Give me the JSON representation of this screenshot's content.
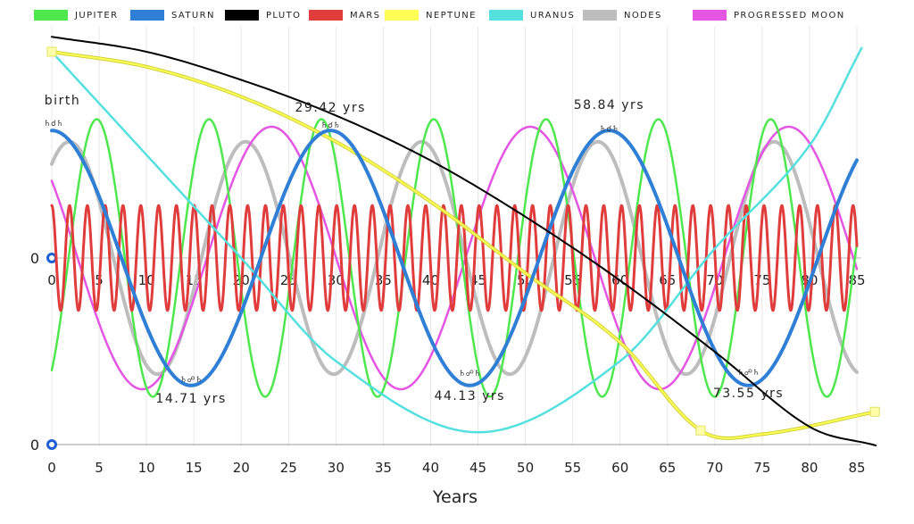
{
  "legend": {
    "items": [
      {
        "label": "JUPITER",
        "color": "#4ee84e"
      },
      {
        "label": "SATURN",
        "color": "#2f7fd6"
      },
      {
        "label": "PLUTO",
        "color": "#000000"
      },
      {
        "label": "MARS",
        "color": "#e03c3c"
      },
      {
        "label": "NEPTUNE",
        "color": "#ffff55"
      },
      {
        "label": "URANUS",
        "color": "#55e0e0"
      },
      {
        "label": "NODES",
        "color": "#bdbdbd"
      },
      {
        "label": "PROGRESSED MOON",
        "color": "#e455e4"
      }
    ]
  },
  "chart_data": {
    "type": "line",
    "xlabel": "Years",
    "ylabel": "",
    "xlim": [
      0,
      85
    ],
    "x_ticks": [
      "0",
      "5",
      "10",
      "15",
      "20",
      "25",
      "30",
      "35",
      "40",
      "45",
      "50",
      "55",
      "60",
      "65",
      "70",
      "75",
      "80",
      "85"
    ],
    "y_ticks": [
      "0",
      "0"
    ],
    "grid": true,
    "legend_position": "top",
    "annotations": [
      {
        "text": "birth",
        "x": 0
      },
      {
        "text": "14.71 yrs",
        "x": 14.71
      },
      {
        "text": "29.42 yrs",
        "x": 29.42
      },
      {
        "text": "44.13 yrs",
        "x": 44.13
      },
      {
        "text": "58.84 yrs",
        "x": 58.84
      },
      {
        "text": "73.55 yrs",
        "x": 73.55
      }
    ],
    "aspect_glyphs": [
      "♄☌♄",
      "♄☍♄",
      "♄☌♄",
      "♄☍♄",
      "♄☌♄",
      "♄☍♄"
    ],
    "series": [
      {
        "name": "JUPITER",
        "period_years": 11.86,
        "amplitude": 0.74,
        "phase": 0.6
      },
      {
        "name": "SATURN",
        "period_years": 29.42,
        "amplitude": 0.68,
        "phase": 0
      },
      {
        "name": "MARS",
        "period_years": 1.88,
        "amplitude": 0.28,
        "phase": 0
      },
      {
        "name": "NODES",
        "period_years": 18.6,
        "amplitude": 0.62,
        "phase": 0.9
      },
      {
        "name": "PROGRESSED MOON",
        "period_years": 27.3,
        "amplitude": 0.7,
        "phase": 0.15
      }
    ],
    "curves": {
      "PLUTO": {
        "x": [
          0,
          10,
          20,
          30,
          40,
          50,
          60,
          70,
          80,
          87
        ],
        "y": [
          1.18,
          1.1,
          0.95,
          0.76,
          0.52,
          0.22,
          -0.12,
          -0.5,
          -0.9,
          -1.0
        ]
      },
      "NEPTUNE": {
        "x": [
          0,
          10,
          20,
          30,
          40,
          50,
          60,
          68.5,
          75,
          87
        ],
        "y": [
          1.1,
          1.02,
          0.86,
          0.62,
          0.3,
          -0.08,
          -0.45,
          -0.92,
          -0.94,
          -0.82
        ]
      },
      "URANUS": {
        "x": [
          0,
          10,
          20,
          30,
          45,
          60,
          70,
          80,
          85.5
        ],
        "y": [
          1.1,
          0.55,
          0.0,
          -0.55,
          -0.93,
          -0.55,
          0.05,
          0.6,
          1.12
        ]
      }
    }
  }
}
